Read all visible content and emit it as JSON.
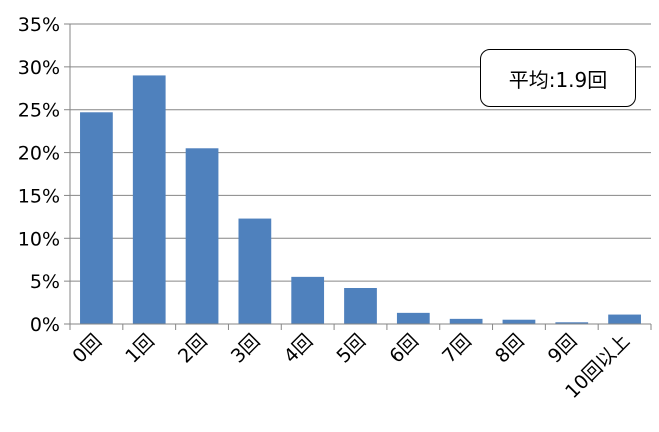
{
  "chart_data": {
    "type": "bar",
    "title": "",
    "xlabel": "",
    "ylabel": "",
    "categories": [
      "0回",
      "1回",
      "2回",
      "3回",
      "4回",
      "5回",
      "6回",
      "7回",
      "8回",
      "9回",
      "10回以上"
    ],
    "values": [
      24.7,
      29.0,
      20.5,
      12.3,
      5.5,
      4.2,
      1.3,
      0.6,
      0.5,
      0.2,
      1.1
    ],
    "ylim": [
      0,
      35
    ],
    "yticks": [
      "0%",
      "5%",
      "10%",
      "15%",
      "20%",
      "25%",
      "30%",
      "35%"
    ],
    "grid": true,
    "bar_color": "#4F81BD",
    "annotation": "平均:1.9回"
  }
}
